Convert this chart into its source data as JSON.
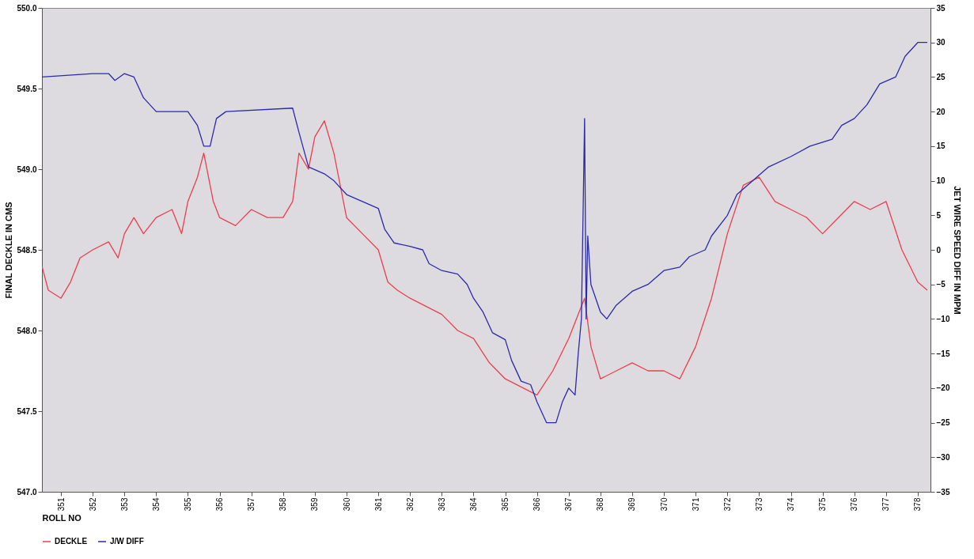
{
  "chart_data": {
    "type": "line",
    "xlabel": "ROLL NO",
    "ylabel": "FINAL DECKLE IN CMS",
    "y2label": "JET WIRE SPEED DIFF IN MPM",
    "xlim": [
      350.4,
      378.4
    ],
    "xticks": [
      351,
      352,
      353,
      354,
      355,
      356,
      357,
      358,
      359,
      360,
      361,
      362,
      363,
      364,
      365,
      366,
      367,
      368,
      369,
      370,
      371,
      372,
      373,
      374,
      375,
      376,
      377,
      378
    ],
    "ylim": [
      547,
      550
    ],
    "yticks": [
      {
        "value": 547,
        "label": "547.0"
      },
      547.5,
      {
        "value": 548,
        "label": "548.0"
      },
      548.5,
      {
        "value": 549,
        "label": "549.0"
      },
      549.5,
      {
        "value": 550,
        "label": "550.0"
      }
    ],
    "y2lim": [
      -35,
      35
    ],
    "y2ticks": [
      -35,
      -30,
      -25,
      -20,
      -15,
      -10,
      -5,
      0,
      5,
      10,
      15,
      20,
      25,
      30,
      35
    ],
    "legend": "bottom",
    "grid": false,
    "line_style": "solid",
    "series": [
      {
        "name": "DECKLE",
        "color": "#e8404f",
        "x": [
          350.4,
          350.6,
          351.0,
          351.3,
          351.6,
          352.0,
          352.5,
          352.8,
          353.0,
          353.3,
          353.6,
          354.0,
          354.5,
          354.8,
          355.0,
          355.3,
          355.5,
          355.8,
          356.0,
          356.5,
          357.0,
          357.5,
          358.0,
          358.3,
          358.5,
          358.8,
          359.0,
          359.3,
          359.6,
          360.0,
          360.5,
          361.0,
          361.3,
          361.6,
          362.0,
          362.5,
          363.0,
          363.5,
          364.0,
          364.5,
          365.0,
          365.5,
          366.0,
          366.5,
          367.0,
          367.3,
          367.5,
          367.7,
          368.0,
          368.5,
          369.0,
          369.5,
          370.0,
          370.5,
          371.0,
          371.5,
          372.0,
          372.5,
          373.0,
          373.5,
          374.0,
          374.5,
          375.0,
          375.5,
          376.0,
          376.5,
          377.0,
          377.5,
          378.0,
          378.3
        ],
        "values": [
          548.4,
          548.25,
          548.2,
          548.3,
          548.45,
          548.5,
          548.55,
          548.45,
          548.6,
          548.7,
          548.6,
          548.7,
          548.75,
          548.6,
          548.8,
          548.95,
          549.1,
          548.8,
          548.7,
          548.65,
          548.75,
          548.7,
          548.7,
          548.8,
          549.1,
          549.0,
          549.2,
          549.3,
          549.1,
          548.7,
          548.6,
          548.5,
          548.3,
          548.25,
          548.2,
          548.15,
          548.1,
          548.0,
          547.95,
          547.8,
          547.7,
          547.65,
          547.6,
          547.75,
          547.95,
          548.1,
          548.2,
          547.9,
          547.7,
          547.75,
          547.8,
          547.75,
          547.75,
          547.7,
          547.9,
          548.2,
          548.6,
          548.9,
          548.95,
          548.8,
          548.75,
          548.7,
          548.6,
          548.7,
          548.8,
          548.75,
          548.8,
          548.5,
          548.3,
          548.25
        ]
      },
      {
        "name": "J/W DIFF",
        "color": "#2a2aa8",
        "axis": "y2",
        "x": [
          350.4,
          352.0,
          352.5,
          352.7,
          353.0,
          353.3,
          353.6,
          354.0,
          355.0,
          355.3,
          355.5,
          355.7,
          355.9,
          356.2,
          358.3,
          358.5,
          358.8,
          359.3,
          359.6,
          360.0,
          360.5,
          361.0,
          361.2,
          361.5,
          362.0,
          362.4,
          362.6,
          363.0,
          363.5,
          363.8,
          364.0,
          364.3,
          364.6,
          365.0,
          365.2,
          365.5,
          365.8,
          366.0,
          366.3,
          366.6,
          366.8,
          367.0,
          367.2,
          367.3,
          367.4,
          367.5,
          367.55,
          367.6,
          367.7,
          368.0,
          368.2,
          368.5,
          369.0,
          369.5,
          370.0,
          370.5,
          370.8,
          371.3,
          371.5,
          372.0,
          372.3,
          372.8,
          373.3,
          374.0,
          374.6,
          375.3,
          375.6,
          376.0,
          376.4,
          376.8,
          377.3,
          377.6,
          378.0,
          378.3
        ],
        "values": [
          25,
          25.5,
          25.5,
          24.5,
          25.5,
          25,
          22,
          20,
          20,
          18,
          15,
          15,
          19,
          20,
          20.5,
          17,
          12,
          11,
          10,
          8,
          7,
          6,
          3,
          1,
          0.5,
          0,
          -2,
          -3,
          -3.5,
          -5,
          -7,
          -9,
          -12,
          -13,
          -16,
          -19,
          -19.5,
          -22,
          -25,
          -25,
          -22,
          -20,
          -21,
          -15,
          -10,
          19,
          -10,
          2,
          -5,
          -9,
          -10,
          -8,
          -6,
          -5,
          -3,
          -2.5,
          -1,
          0,
          2,
          5,
          8,
          10,
          12,
          13.5,
          15,
          16,
          18,
          19,
          21,
          24,
          25,
          28,
          30,
          30
        ]
      }
    ]
  }
}
